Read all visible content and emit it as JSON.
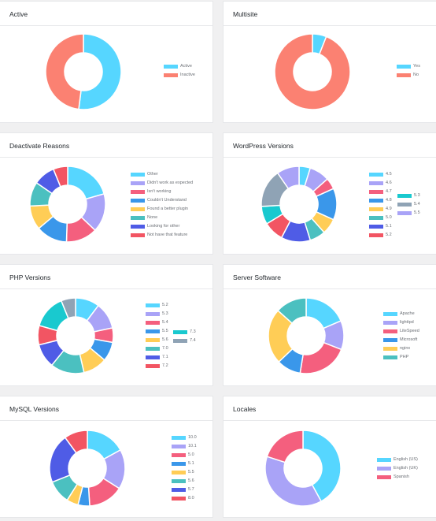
{
  "colors": {
    "page_bg": "#f0f0f1",
    "card_bg": "#ffffff",
    "palette": {
      "cyan": "#56d6ff",
      "lavender": "#a9a3f7",
      "pink": "#f45f7e",
      "blue": "#3a97ea",
      "yellow": "#ffcd56",
      "teal": "#4bc0c0",
      "indigo": "#4f5ce6",
      "red": "#f25563",
      "grayblue": "#8fa3b5",
      "salmon": "#fb8172"
    }
  },
  "cards": [
    {
      "title": "Active",
      "chart_data": {
        "type": "pie",
        "title": "Active",
        "labels": [
          "Active",
          "Inactive"
        ],
        "values": [
          52,
          48
        ],
        "colors": [
          "#56d6ff",
          "#fb8172"
        ],
        "legend_position": "right"
      }
    },
    {
      "title": "Multisite",
      "chart_data": {
        "type": "pie",
        "title": "Multisite",
        "labels": [
          "Yes",
          "No"
        ],
        "values": [
          6,
          94
        ],
        "colors": [
          "#56d6ff",
          "#fb8172"
        ],
        "legend_position": "right"
      }
    },
    {
      "title": "Deactivate Reasons",
      "chart_data": {
        "type": "pie",
        "title": "Deactivate Reasons",
        "labels": [
          "Other",
          "Didn't work as expected",
          "Isn't working",
          "Couldn't Understand",
          "Found a better plugin",
          "None",
          "Looking for other",
          "Not have that feature"
        ],
        "values": [
          20,
          16,
          13,
          13,
          10,
          10,
          9,
          6
        ],
        "colors": [
          "#56d6ff",
          "#a9a3f7",
          "#f45f7e",
          "#3a97ea",
          "#ffcd56",
          "#4bc0c0",
          "#4f5ce6",
          "#f25563"
        ],
        "legend_position": "right"
      }
    },
    {
      "title": "WordPress Versions",
      "chart_data": {
        "type": "pie",
        "title": "WordPress Versions",
        "labels": [
          "4.5",
          "4.6",
          "4.7",
          "4.8",
          "4.9",
          "5.0",
          "5.1",
          "5.2",
          "5.3",
          "5.4",
          "5.5"
        ],
        "values": [
          5,
          9,
          5,
          14,
          7,
          7,
          13,
          9,
          8,
          17,
          10
        ],
        "colors": [
          "#56d6ff",
          "#a9a3f7",
          "#f45f7e",
          "#3a97ea",
          "#ffcd56",
          "#4bc0c0",
          "#4f5ce6",
          "#f25563",
          "#19c9cf",
          "#8fa3b5",
          "#a9a3f7"
        ],
        "legend_position": "right"
      }
    },
    {
      "title": "PHP Versions",
      "chart_data": {
        "type": "pie",
        "title": "PHP Versions",
        "labels": [
          "5.2",
          "5.3",
          "5.4",
          "5.5",
          "5.6",
          "7.0",
          "7.1",
          "7.2",
          "7.3",
          "7.4"
        ],
        "values": [
          10,
          11,
          6,
          8,
          10,
          14,
          10,
          8,
          14,
          6
        ],
        "colors": [
          "#56d6ff",
          "#a9a3f7",
          "#f45f7e",
          "#3a97ea",
          "#ffcd56",
          "#4bc0c0",
          "#4f5ce6",
          "#f25563",
          "#19c9cf",
          "#8fa3b5"
        ],
        "legend_position": "right"
      }
    },
    {
      "title": "Server Software",
      "chart_data": {
        "type": "pie",
        "title": "Server Software",
        "labels": [
          "Apache",
          "lighttpd",
          "LiteSpeed",
          "Microsoft",
          "nginx",
          "PHP"
        ],
        "values": [
          18,
          12,
          21,
          10,
          23,
          13
        ],
        "colors": [
          "#56d6ff",
          "#a9a3f7",
          "#f45f7e",
          "#3a97ea",
          "#ffcd56",
          "#4bc0c0"
        ],
        "legend_position": "right"
      }
    },
    {
      "title": "MySQL Versions",
      "chart_data": {
        "type": "pie",
        "title": "MySQL Versions",
        "labels": [
          "10.0",
          "10.1",
          "5.0",
          "5.1",
          "5.5",
          "5.6",
          "5.7",
          "8.0"
        ],
        "values": [
          17,
          17,
          15,
          5,
          5,
          10,
          21,
          10
        ],
        "colors": [
          "#56d6ff",
          "#a9a3f7",
          "#f45f7e",
          "#3a97ea",
          "#ffcd56",
          "#4bc0c0",
          "#4f5ce6",
          "#f25563"
        ],
        "legend_position": "right"
      }
    },
    {
      "title": "Locales",
      "chart_data": {
        "type": "pie",
        "title": "Locales",
        "labels": [
          "English (US)",
          "English (UK)",
          "Spanish"
        ],
        "values": [
          42,
          38,
          20
        ],
        "colors": [
          "#56d6ff",
          "#a9a3f7",
          "#f45f7e"
        ],
        "legend_position": "right"
      }
    }
  ]
}
